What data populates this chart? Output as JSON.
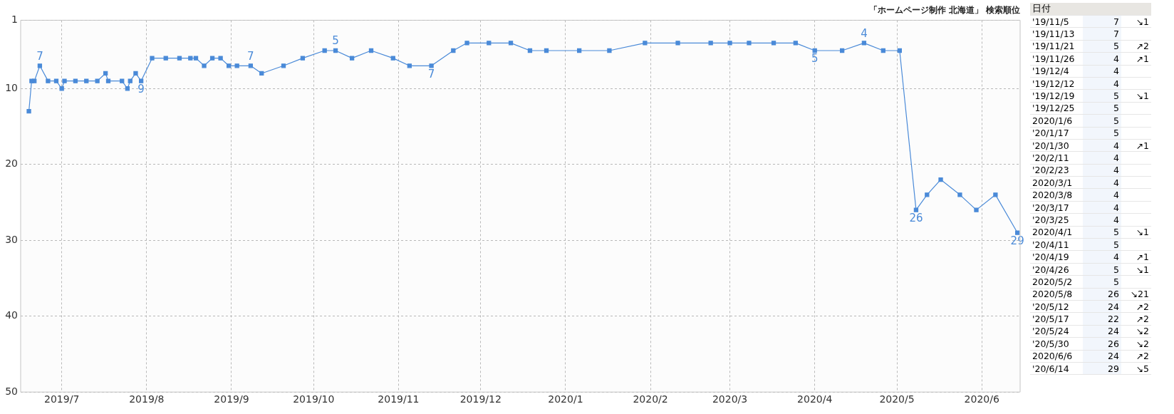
{
  "chart_data": [
    {
      "type": "line",
      "title": "「ホームページ制作 北海道」 検索順位",
      "x": [
        "2019-06-19",
        "2019-06-20",
        "2019-06-21",
        "2019-06-23",
        "2019-06-26",
        "2019-06-29",
        "2019-07-01",
        "2019-07-02",
        "2019-07-06",
        "2019-07-10",
        "2019-07-14",
        "2019-07-17",
        "2019-07-18",
        "2019-07-23",
        "2019-07-25",
        "2019-07-26",
        "2019-07-28",
        "2019-07-30",
        "2019-08-03",
        "2019-08-08",
        "2019-08-13",
        "2019-08-17",
        "2019-08-19",
        "2019-08-22",
        "2019-08-25",
        "2019-08-28",
        "2019-08-31",
        "2019-09-03",
        "2019-09-08",
        "2019-09-12",
        "2019-09-20",
        "2019-09-27",
        "2019-10-05",
        "2019-10-09",
        "2019-10-15",
        "2019-10-22",
        "2019-10-30",
        "2019-11-05",
        "2019-11-13",
        "2019-11-21",
        "2019-11-26",
        "2019-12-04",
        "2019-12-12",
        "2019-12-19",
        "2019-12-25",
        "2020-01-06",
        "2020-01-17",
        "2020-01-30",
        "2020-02-11",
        "2020-02-23",
        "2020-03-01",
        "2020-03-08",
        "2020-03-17",
        "2020-03-25",
        "2020-04-01",
        "2020-04-11",
        "2020-04-19",
        "2020-04-26",
        "2020-05-02",
        "2020-05-08",
        "2020-05-12",
        "2020-05-17",
        "2020-05-24",
        "2020-05-30",
        "2020-06-06",
        "2020-06-14"
      ],
      "series": [
        {
          "color": "#4a8ad8",
          "values": [
            13,
            9,
            9,
            7,
            9,
            9,
            10,
            9,
            9,
            9,
            9,
            8,
            9,
            9,
            10,
            9,
            8,
            9,
            6,
            6,
            6,
            6,
            6,
            7,
            6,
            6,
            7,
            7,
            7,
            8,
            7,
            6,
            5,
            5,
            6,
            5,
            6,
            7,
            7,
            5,
            4,
            4,
            4,
            5,
            5,
            5,
            5,
            4,
            4,
            4,
            4,
            4,
            4,
            4,
            5,
            5,
            4,
            5,
            5,
            26,
            24,
            22,
            24,
            26,
            24,
            29
          ],
          "value_labels": [
            null,
            null,
            null,
            "7",
            null,
            null,
            null,
            null,
            null,
            null,
            null,
            null,
            null,
            null,
            null,
            null,
            null,
            "9",
            null,
            null,
            null,
            null,
            null,
            null,
            null,
            null,
            null,
            null,
            "7",
            null,
            null,
            null,
            null,
            "5",
            null,
            null,
            null,
            null,
            "7",
            null,
            null,
            null,
            null,
            null,
            null,
            null,
            null,
            null,
            null,
            null,
            null,
            null,
            null,
            null,
            "5",
            null,
            "4",
            null,
            null,
            "26",
            null,
            null,
            null,
            null,
            null,
            "29"
          ]
        }
      ],
      "xlim": [
        "2019-06-16",
        "2020-06-15"
      ],
      "xticks": [
        {
          "value": "2019-07-01",
          "label": "2019/7"
        },
        {
          "value": "2019-08-01",
          "label": "2019/8"
        },
        {
          "value": "2019-09-01",
          "label": "2019/9"
        },
        {
          "value": "2019-10-01",
          "label": "2019/10"
        },
        {
          "value": "2019-11-01",
          "label": "2019/11"
        },
        {
          "value": "2019-12-01",
          "label": "2019/12"
        },
        {
          "value": "2020-01-01",
          "label": "2020/1"
        },
        {
          "value": "2020-02-01",
          "label": "2020/2"
        },
        {
          "value": "2020-03-01",
          "label": "2020/3"
        },
        {
          "value": "2020-04-01",
          "label": "2020/4"
        },
        {
          "value": "2020-05-01",
          "label": "2020/5"
        },
        {
          "value": "2020-06-01",
          "label": "2020/6"
        }
      ],
      "ylim": [
        50,
        1
      ],
      "yticks": [
        1,
        10,
        20,
        30,
        40,
        50
      ],
      "grid": true,
      "legend": false,
      "marker": "square",
      "line_style": "solid"
    },
    {
      "type": "other",
      "xlabel": "日付",
      "categories": [
        "'19/11/5",
        "'19/11/13",
        "'19/11/21",
        "'19/11/26",
        "'19/12/4",
        "'19/12/12",
        "'19/12/19",
        "'19/12/25",
        "2020/1/6",
        "'20/1/17",
        "'20/1/30",
        "'20/2/11",
        "'20/2/23",
        "2020/3/1",
        "2020/3/8",
        "'20/3/17",
        "'20/3/25",
        "2020/4/1",
        "'20/4/11",
        "'20/4/19",
        "'20/4/26",
        "2020/5/2",
        "2020/5/8",
        "'20/5/12",
        "'20/5/17",
        "'20/5/24",
        "'20/5/30",
        "2020/6/6",
        "'20/6/14"
      ],
      "values": [
        7,
        7,
        5,
        4,
        4,
        4,
        5,
        5,
        5,
        5,
        4,
        4,
        4,
        4,
        4,
        4,
        4,
        5,
        5,
        4,
        5,
        5,
        26,
        24,
        22,
        24,
        26,
        24,
        29
      ],
      "data_labels": true,
      "annotations": [
        {
          "text": "↘1",
          "x": "'19/11/5"
        },
        {
          "text": "↗2",
          "x": "'19/11/21"
        },
        {
          "text": "↗1",
          "x": "'19/11/26"
        },
        {
          "text": "↘1",
          "x": "'19/12/19"
        },
        {
          "text": "↗1",
          "x": "'20/1/30"
        },
        {
          "text": "↘1",
          "x": "2020/4/1"
        },
        {
          "text": "↗1",
          "x": "'20/4/19"
        },
        {
          "text": "↘1",
          "x": "'20/4/26"
        },
        {
          "text": "↘21",
          "x": "2020/5/8"
        },
        {
          "text": "↗2",
          "x": "'20/5/12"
        },
        {
          "text": "↗2",
          "x": "'20/5/17"
        },
        {
          "text": "↘2",
          "x": "'20/5/24"
        },
        {
          "text": "↘2",
          "x": "'20/5/30"
        },
        {
          "text": "↗2",
          "x": "2020/6/6"
        },
        {
          "text": "↘5",
          "x": "'20/6/14"
        }
      ]
    }
  ]
}
